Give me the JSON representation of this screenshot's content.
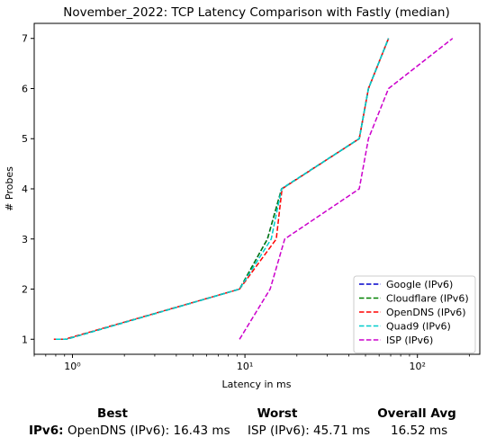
{
  "chart_data": {
    "type": "line",
    "title": "November_2022: TCP Latency Comparison with Fastly (median)",
    "xlabel": "Latency in ms",
    "ylabel": "# Probes",
    "xscale": "log",
    "xlim": [
      0.6,
      230
    ],
    "ylim": [
      0.7,
      7.3
    ],
    "xticks": [
      {
        "value": 1,
        "label": "10⁰"
      },
      {
        "value": 10,
        "label": "10¹"
      },
      {
        "value": 100,
        "label": "10²"
      }
    ],
    "yticks": [
      1,
      2,
      3,
      4,
      5,
      6,
      7
    ],
    "grid": false,
    "legend": "bottom-right",
    "series": [
      {
        "name": "Google (IPv6)",
        "color": "#0000cc",
        "dash": "dashed",
        "x": [
          0.8,
          0.92,
          9.3,
          13.5,
          16.3,
          46,
          52,
          68
        ],
        "y": [
          1,
          1,
          2,
          3,
          4,
          5,
          6,
          7
        ]
      },
      {
        "name": "Cloudflare (IPv6)",
        "color": "#008000",
        "dash": "dashed",
        "x": [
          0.8,
          0.92,
          9.3,
          13.5,
          16.3,
          46,
          52,
          68
        ],
        "y": [
          1,
          1,
          2,
          3,
          4,
          5,
          6,
          7
        ]
      },
      {
        "name": "OpenDNS (IPv6)",
        "color": "#ff0000",
        "dash": "dashed",
        "x": [
          0.78,
          0.9,
          9.3,
          15.2,
          16.4,
          46,
          52,
          68
        ],
        "y": [
          1,
          1,
          2,
          3,
          4,
          5,
          6,
          7
        ]
      },
      {
        "name": "Quad9 (IPv6)",
        "color": "#00cccc",
        "dash": "dashed",
        "x": [
          0.8,
          0.92,
          9.3,
          14.2,
          16.3,
          46,
          52,
          68
        ],
        "y": [
          1,
          1,
          2,
          3,
          4,
          5,
          6,
          7
        ]
      },
      {
        "name": "ISP (IPv6)",
        "color": "#cc00cc",
        "dash": "dashed",
        "x": [
          9.3,
          14,
          17,
          46,
          52,
          68,
          160
        ],
        "y": [
          1,
          2,
          3,
          4,
          5,
          6,
          7
        ]
      }
    ]
  },
  "stats": {
    "headers": {
      "best": "Best",
      "worst": "Worst",
      "avg": "Overall Avg"
    },
    "row_label": "IPv6:",
    "best": "OpenDNS (IPv6): 16.43 ms",
    "worst": "ISP (IPv6): 45.71 ms",
    "avg": "16.52 ms"
  }
}
